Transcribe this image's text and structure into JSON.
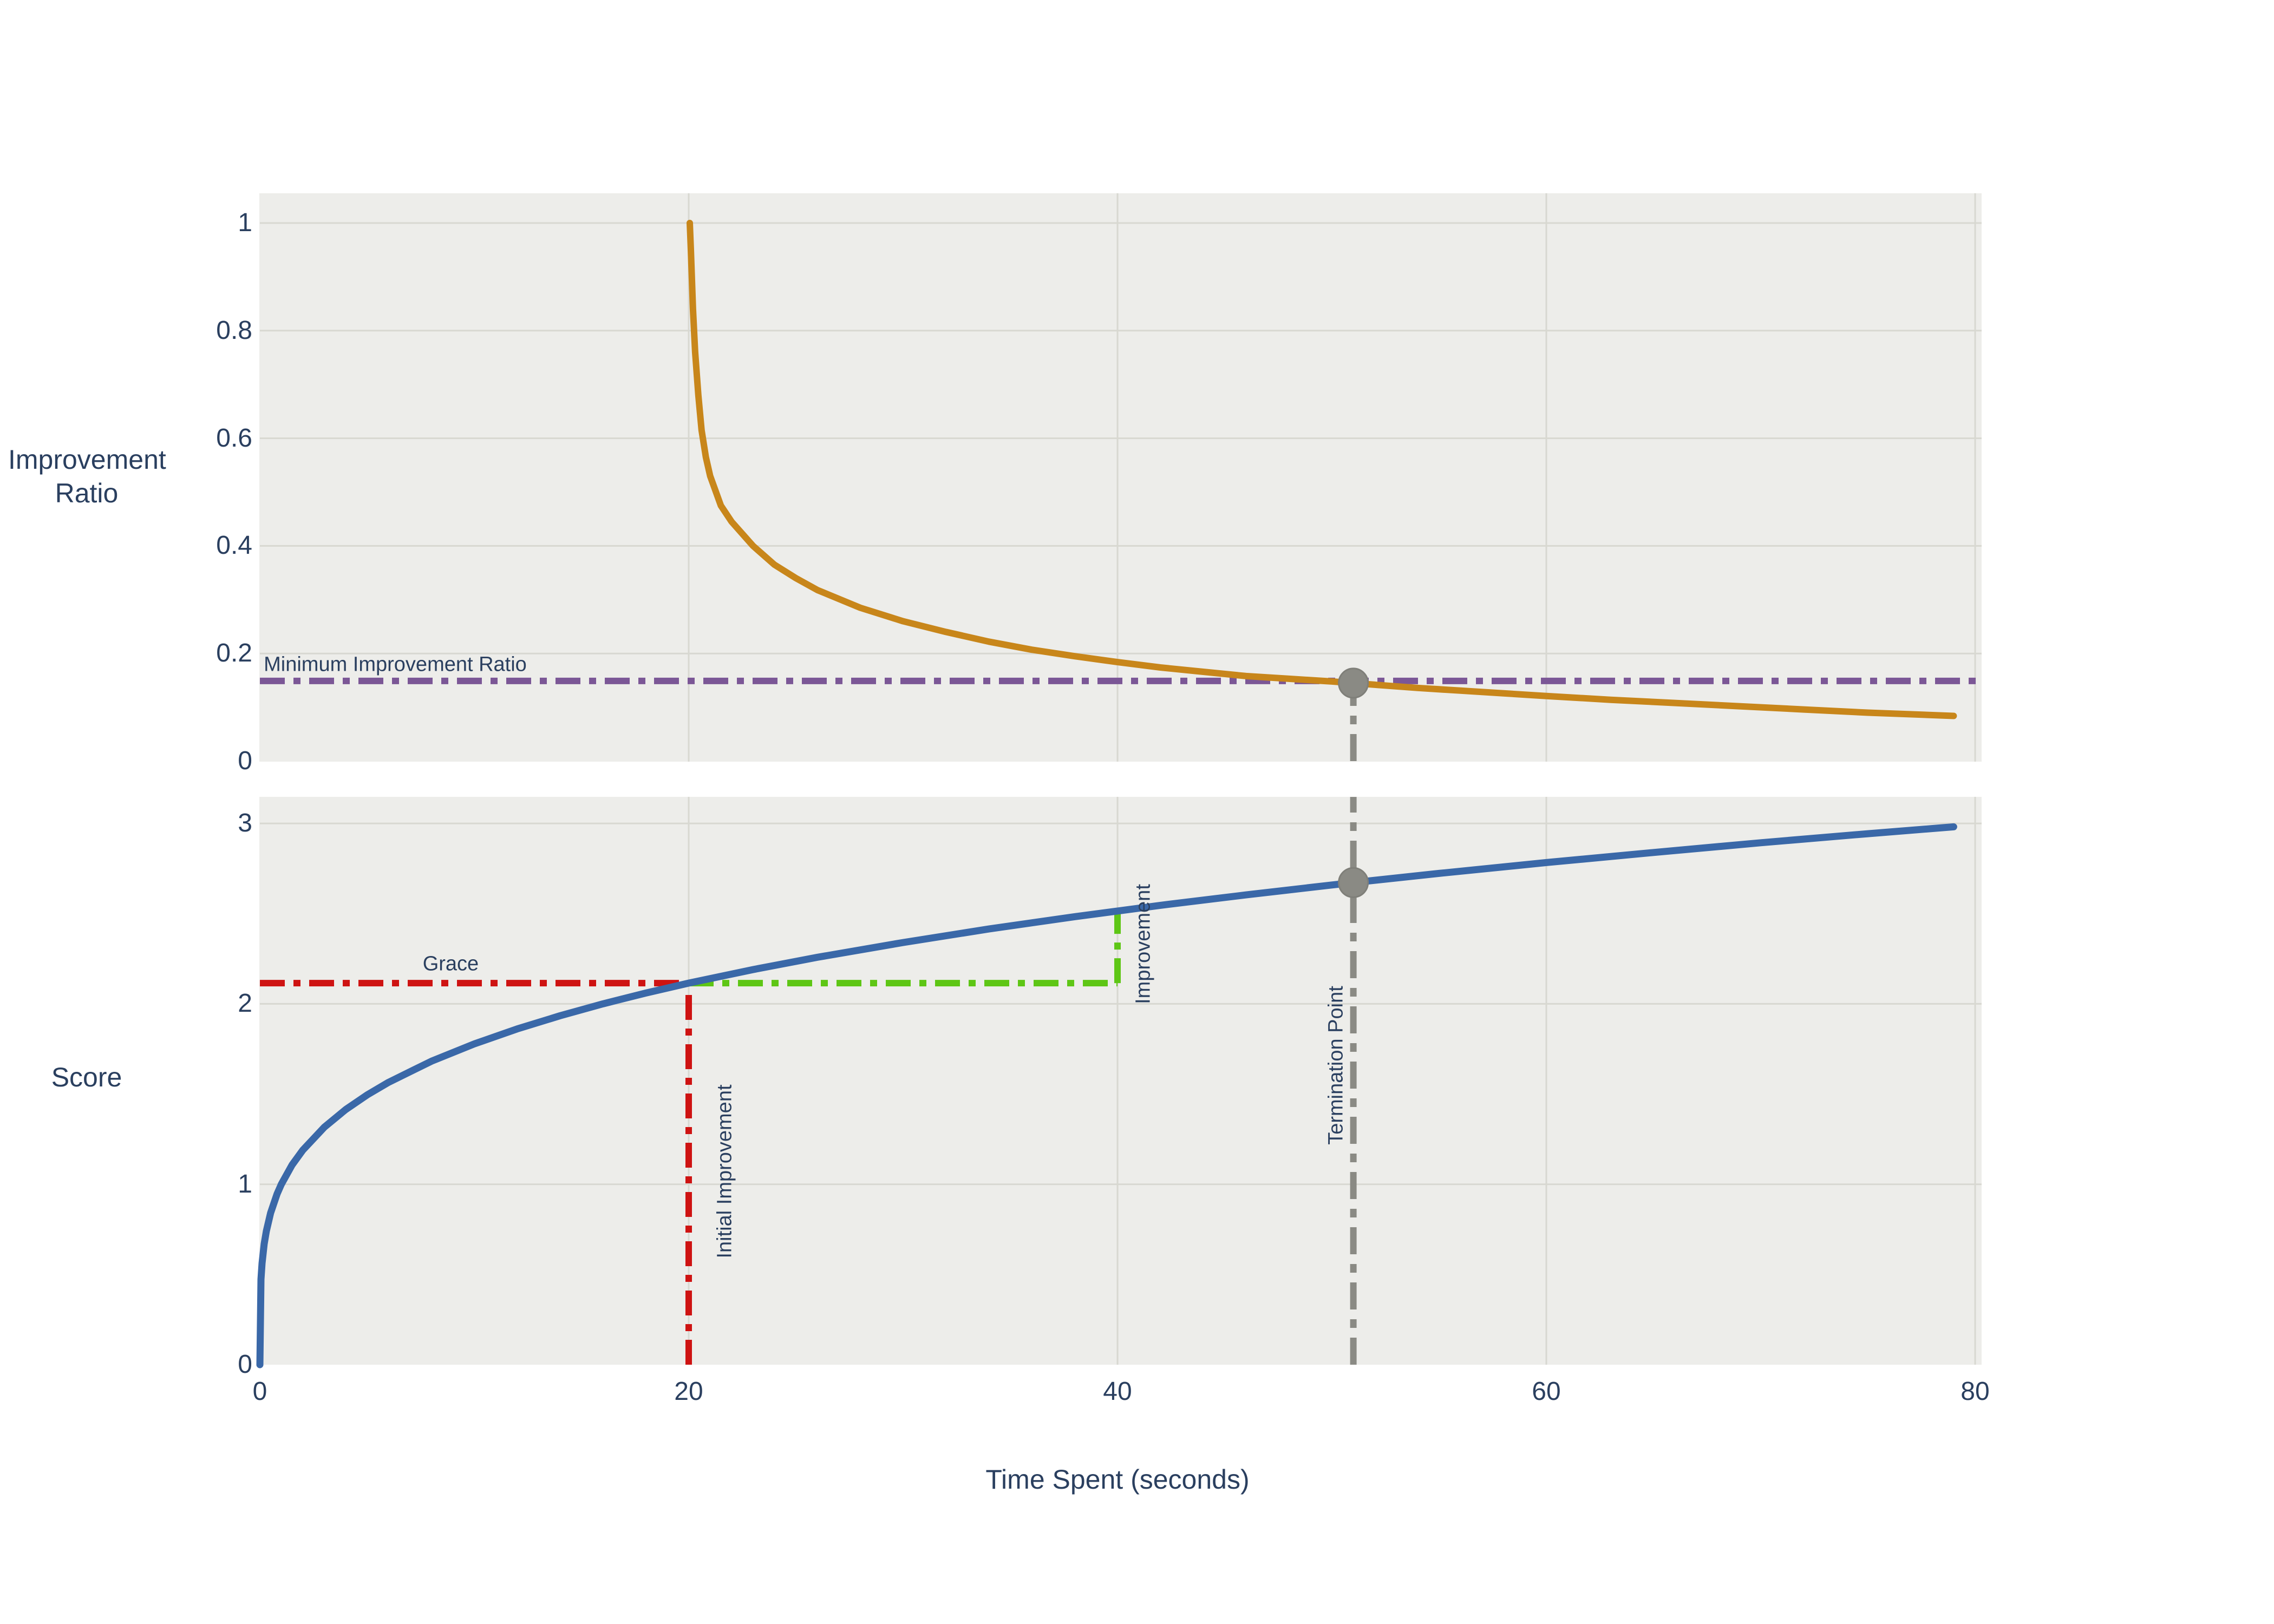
{
  "figure": {
    "background": "#ffffff",
    "panel_background": "#EDEDEA",
    "grid_color": "#D8D8D1",
    "text_color": "#2A3F5F",
    "curve_orange": "#C8861A",
    "curve_blue": "#3A68A8",
    "guide_purple": "#7B5796",
    "guide_red": "#CE1312",
    "guide_green": "#5EC615",
    "guide_gray": "#8A8A84"
  },
  "chart_data": [
    {
      "type": "line",
      "panel": "top",
      "ylabel": "Improvement Ratio",
      "xlim": [
        0,
        80.3
      ],
      "ylim": [
        0,
        1.055
      ],
      "yticks": [
        1,
        0.8,
        0.6,
        0.4,
        0.2,
        0
      ],
      "xticks": [
        0,
        20,
        40,
        60,
        80
      ],
      "grid": true,
      "legend": "none",
      "series": [
        {
          "name": "Improvement Ratio",
          "color": "#C8861A",
          "width": 12,
          "x": [
            20.05,
            20.1,
            20.2,
            20.3,
            20.45,
            20.6,
            20.8,
            21,
            21.5,
            22,
            23,
            24,
            25,
            26,
            28,
            30,
            32,
            34,
            36,
            38,
            40,
            42,
            44,
            46,
            48,
            50,
            51,
            52,
            54,
            56,
            58,
            60,
            63,
            66,
            69,
            72,
            75,
            79
          ],
          "y": [
            1.0,
            0.95,
            0.84,
            0.76,
            0.68,
            0.615,
            0.565,
            0.53,
            0.475,
            0.445,
            0.4,
            0.365,
            0.34,
            0.318,
            0.285,
            0.26,
            0.24,
            0.222,
            0.207,
            0.195,
            0.184,
            0.174,
            0.166,
            0.158,
            0.153,
            0.148,
            0.145,
            0.142,
            0.136,
            0.131,
            0.126,
            0.121,
            0.114,
            0.108,
            0.102,
            0.096,
            0.09,
            0.084
          ]
        }
      ],
      "guides": [
        {
          "kind": "vline",
          "x": 51,
          "y0": 0,
          "y1": 0.145,
          "color": "#8A8A84",
          "width": 12,
          "dash": "50 18 16 18"
        },
        {
          "kind": "hline",
          "y": 0.149,
          "x0": 0,
          "x1": 80.3,
          "color": "#7B5796",
          "width": 12,
          "dash": "46 16 13 16"
        }
      ],
      "markers": [
        {
          "x": 51,
          "y": 0.145,
          "r": 27,
          "color": "#8A8A84"
        }
      ],
      "annotations": {
        "min_ratio": {
          "text": "Minimum Improvement Ratio",
          "x": 0.18,
          "y": 0.179,
          "rotate": 0,
          "anchor": "left"
        }
      }
    },
    {
      "type": "line",
      "panel": "bottom",
      "xlabel": "Time Spent (seconds)",
      "ylabel": "Score",
      "xlim": [
        0,
        80.3
      ],
      "ylim": [
        0,
        3.147
      ],
      "yticks": [
        3,
        2,
        1,
        0
      ],
      "xticks": [
        0,
        20,
        40,
        60,
        80
      ],
      "grid": true,
      "legend": "none",
      "series": [
        {
          "name": "Score",
          "color": "#3A68A8",
          "width": 13,
          "x": [
            0,
            0.05,
            0.1,
            0.2,
            0.3,
            0.5,
            0.8,
            1,
            1.5,
            2,
            3,
            4,
            5,
            6,
            8,
            10,
            12,
            14,
            16,
            18,
            20,
            23,
            26,
            30,
            34,
            38,
            42,
            46,
            50,
            51,
            55,
            60,
            65,
            70,
            75,
            79
          ],
          "y": [
            0,
            0.473,
            0.562,
            0.669,
            0.74,
            0.841,
            0.946,
            1.0,
            1.107,
            1.189,
            1.316,
            1.414,
            1.495,
            1.565,
            1.682,
            1.778,
            1.861,
            1.934,
            2.0,
            2.06,
            2.115,
            2.19,
            2.258,
            2.34,
            2.415,
            2.483,
            2.546,
            2.604,
            2.659,
            2.672,
            2.723,
            2.783,
            2.839,
            2.893,
            2.943,
            2.981
          ]
        }
      ],
      "guides": [
        {
          "kind": "vline",
          "x": 51,
          "y0": 0,
          "y1": 3.147,
          "color": "#8A8A84",
          "width": 12,
          "dash": "50 18 16 18"
        },
        {
          "kind": "hline",
          "y": 2.115,
          "x0": 0,
          "x1": 20,
          "color": "#CE1312",
          "width": 12,
          "dash": "46 16 13 16"
        },
        {
          "kind": "vline",
          "x": 20,
          "y0": 0,
          "y1": 2.115,
          "color": "#CE1312",
          "width": 12,
          "dash": "46 16 13 16"
        },
        {
          "kind": "hline",
          "y": 2.115,
          "x0": 20,
          "x1": 40,
          "color": "#5EC615",
          "width": 12,
          "dash": "46 16 13 16"
        },
        {
          "kind": "vline",
          "x": 40,
          "y0": 2.115,
          "y1": 2.515,
          "color": "#5EC615",
          "width": 12,
          "dash": "46 16 13 16"
        }
      ],
      "markers": [
        {
          "x": 51,
          "y": 2.672,
          "r": 27,
          "color": "#8A8A84"
        }
      ],
      "annotations": {
        "grace": {
          "text": "Grace",
          "x": 8.9,
          "y": 2.22,
          "rotate": 0,
          "anchor": "center"
        },
        "initial_improvement": {
          "text": "Initial Improvement",
          "x": 21.7,
          "y": 1.07,
          "rotate": -90,
          "anchor": "center"
        },
        "improvement": {
          "text": "Improvement",
          "x": 41.2,
          "y": 2.33,
          "rotate": -90,
          "anchor": "center"
        },
        "termination_point": {
          "text": "Termination Point",
          "x": 50.2,
          "y": 1.66,
          "rotate": -90,
          "anchor": "center"
        }
      }
    }
  ]
}
